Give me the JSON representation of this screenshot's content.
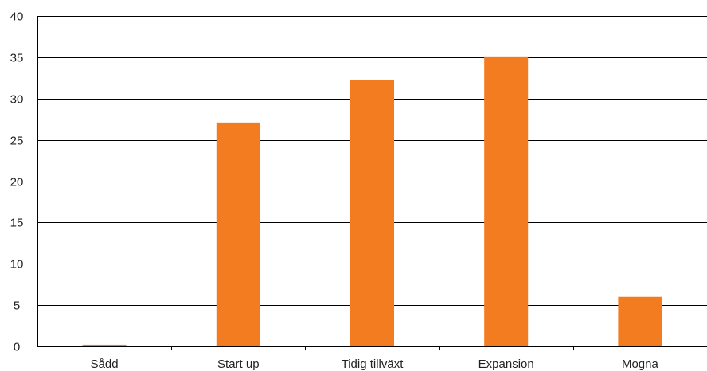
{
  "chart_data": {
    "type": "bar",
    "categories": [
      "Sådd",
      "Start up",
      "Tidig tillväxt",
      "Expansion",
      "Mogna"
    ],
    "values": [
      0.2,
      27.1,
      32.2,
      35.1,
      6.0
    ],
    "ylim": [
      0,
      40
    ],
    "yticks": [
      "0",
      "5",
      "10",
      "15",
      "20",
      "25",
      "30",
      "35",
      "40"
    ],
    "ytick_values": [
      0,
      5,
      10,
      15,
      20,
      25,
      30,
      35,
      40
    ],
    "grid": true,
    "bar_color": "#F47C20",
    "title": "",
    "xlabel": "",
    "ylabel": ""
  }
}
